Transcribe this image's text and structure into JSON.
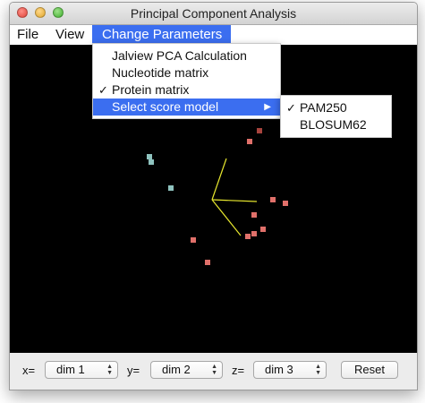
{
  "window": {
    "title": "Principal Component Analysis"
  },
  "menubar": {
    "items": [
      "File",
      "View",
      "Change Parameters"
    ]
  },
  "change_parameters_menu": {
    "items": [
      {
        "label": "Jalview PCA Calculation",
        "checked": false
      },
      {
        "label": "Nucleotide matrix",
        "checked": false
      },
      {
        "label": "Protein matrix",
        "checked": true
      },
      {
        "label": "Select score model",
        "has_submenu": true,
        "highlighted": true
      }
    ]
  },
  "score_model_submenu": {
    "items": [
      {
        "label": "PAM250",
        "checked": true
      },
      {
        "label": "BLOSUM62",
        "checked": false
      }
    ]
  },
  "check_glyph": "✓",
  "submenu_arrow_glyph": "▶",
  "bottom_bar": {
    "x_label": "x=",
    "x_value": "dim 1",
    "y_label": "y=",
    "y_value": "dim 2",
    "z_label": "z=",
    "z_value": "dim 3",
    "reset_label": "Reset"
  },
  "colors": {
    "highlight": "#3b6ef0",
    "plot_background": "#000000",
    "axes": "#e6e62e",
    "point_red": "#e0706a",
    "point_darkred": "#a8443e",
    "point_teal": "#8fc3bf"
  },
  "icons": [
    "close-light-icon",
    "minimize-light-icon",
    "zoom-light-icon",
    "checkmark-icon",
    "submenu-arrow-icon",
    "updown-arrows-icon"
  ]
}
